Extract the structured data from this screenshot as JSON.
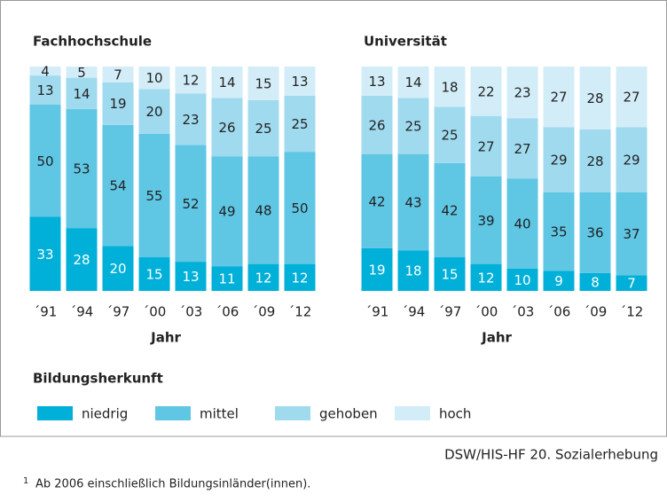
{
  "chart_data": [
    {
      "type": "stacked_bar",
      "title": "Fachhochschule",
      "x_label": "Jahr",
      "categories": [
        "´91",
        "´94",
        "´97",
        "´00",
        "´03",
        "´06",
        "´09",
        "´12"
      ],
      "ylim": [
        0,
        100
      ],
      "series": [
        {
          "name": "niedrig",
          "color": "#00b0d8",
          "values": [
            33,
            28,
            20,
            15,
            13,
            11,
            12,
            12
          ]
        },
        {
          "name": "mittel",
          "color": "#5fc6e4",
          "values": [
            50,
            53,
            54,
            55,
            52,
            49,
            48,
            50
          ]
        },
        {
          "name": "gehoben",
          "color": "#a0daef",
          "values": [
            13,
            14,
            19,
            20,
            23,
            26,
            25,
            25
          ]
        },
        {
          "name": "hoch",
          "color": "#d3edf8",
          "values": [
            4,
            5,
            7,
            10,
            12,
            14,
            15,
            13
          ]
        }
      ]
    },
    {
      "type": "stacked_bar",
      "title": "Universität",
      "x_label": "Jahr",
      "categories": [
        "´91",
        "´94",
        "´97",
        "´00",
        "´03",
        "´06",
        "´09",
        "´12"
      ],
      "ylim": [
        0,
        100
      ],
      "series": [
        {
          "name": "niedrig",
          "color": "#00b0d8",
          "values": [
            19,
            18,
            15,
            12,
            10,
            9,
            8,
            7
          ]
        },
        {
          "name": "mittel",
          "color": "#5fc6e4",
          "values": [
            42,
            43,
            42,
            39,
            40,
            35,
            36,
            37
          ]
        },
        {
          "name": "gehoben",
          "color": "#a0daef",
          "values": [
            26,
            25,
            25,
            27,
            27,
            29,
            28,
            29
          ]
        },
        {
          "name": "hoch",
          "color": "#d3edf8",
          "values": [
            13,
            14,
            18,
            22,
            23,
            27,
            28,
            27
          ]
        }
      ]
    }
  ],
  "legend_title": "Bildungsherkunft",
  "source": "DSW/HIS-HF 20. Sozialerhebung",
  "footnote": {
    "marker": "1",
    "text": "Ab 2006 einschließlich Bildungsinländer(innen)."
  }
}
